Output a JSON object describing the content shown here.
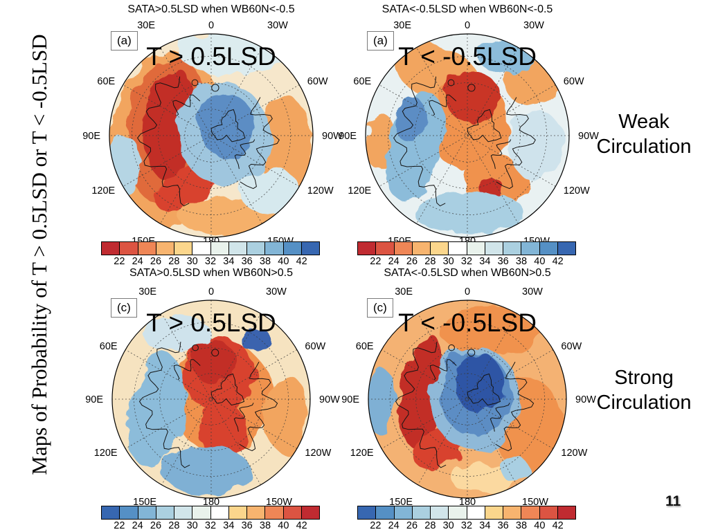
{
  "slide": {
    "vertical_title": "Maps of Probability of T > 0.5LSD or T < -0.5LSD",
    "weak_line1": "Weak",
    "weak_line2": "Circulation",
    "strong_line1": "Strong",
    "strong_line2": "Circulation",
    "page_number": "11"
  },
  "panels": [
    {
      "tag": "(a)",
      "title": "SATA>0.5LSD when WB60N<-0.5",
      "overlay": "T > 0.5LSD",
      "colorbar_direction": "warm_to_cool",
      "row_label": "Weak Circulation"
    },
    {
      "tag": "(a)",
      "title": "SATA<-0.5LSD when WB60N<-0.5",
      "overlay": "T < -0.5LSD",
      "colorbar_direction": "warm_to_cool",
      "row_label": "Weak Circulation"
    },
    {
      "tag": "(c)",
      "title": "SATA>0.5LSD when WB60N>0.5",
      "overlay": "T > 0.5LSD",
      "colorbar_direction": "cool_to_warm",
      "row_label": "Strong Circulation"
    },
    {
      "tag": "(c)",
      "title": "SATA<-0.5LSD when WB60N>0.5",
      "overlay": "T < -0.5LSD",
      "colorbar_direction": "cool_to_warm",
      "row_label": "Strong Circulation"
    }
  ],
  "colorbar": {
    "tick_values": [
      "22",
      "24",
      "26",
      "28",
      "30",
      "32",
      "34",
      "36",
      "38",
      "40",
      "42"
    ],
    "warm_to_cool_colors": [
      "#c02b31",
      "#dc5442",
      "#ef8656",
      "#f7b46f",
      "#fbd68c",
      "#ffffff",
      "#e9f2ec",
      "#d1e5ea",
      "#abd0e0",
      "#82b5d6",
      "#5590c5",
      "#3767b1"
    ]
  },
  "map_ring_labels": [
    "0",
    "30W",
    "60W",
    "90W",
    "120W",
    "150W",
    "180",
    "150E",
    "120E",
    "90E",
    "60E",
    "30E"
  ]
}
